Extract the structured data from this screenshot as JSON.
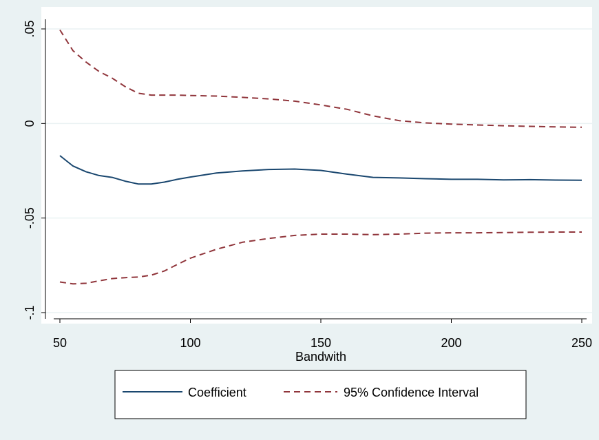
{
  "colors": {
    "background": "#eaf2f3",
    "plot_region": "#ffffff",
    "gridline": "#eaf2f3",
    "coefficient": "#1a476f",
    "confidence_interval": "#90353b"
  },
  "chart_data": {
    "type": "line",
    "xlabel": "Bandwith",
    "ylabel": "",
    "xlim": [
      50,
      250
    ],
    "ylim": [
      -0.1,
      0.05
    ],
    "x_ticks": [
      50,
      100,
      150,
      200,
      250
    ],
    "x_tick_labels": [
      "50",
      "100",
      "150",
      "200",
      "250"
    ],
    "y_ticks": [
      -0.1,
      -0.05,
      0,
      0.05
    ],
    "y_tick_labels": [
      "-.1",
      "-.05",
      "0",
      ".05"
    ],
    "grid": "horizontal",
    "legend_position": "bottom",
    "series": [
      {
        "name": "Coefficient",
        "style": "solid",
        "color": "#1a476f",
        "x": [
          50,
          55,
          60,
          65,
          70,
          75,
          80,
          85,
          90,
          95,
          100,
          110,
          120,
          130,
          140,
          150,
          160,
          170,
          180,
          190,
          200,
          210,
          220,
          230,
          240,
          250
        ],
        "y": [
          -0.017,
          -0.0225,
          -0.0255,
          -0.0275,
          -0.0285,
          -0.0305,
          -0.032,
          -0.032,
          -0.031,
          -0.0295,
          -0.0283,
          -0.0262,
          -0.0251,
          -0.0243,
          -0.0241,
          -0.0248,
          -0.0268,
          -0.0285,
          -0.0288,
          -0.0292,
          -0.0295,
          -0.0295,
          -0.0298,
          -0.0297,
          -0.0299,
          -0.03
        ]
      },
      {
        "name": "95% Confidence Interval",
        "style": "dashed",
        "color": "#90353b",
        "group": "ci",
        "x": [
          50,
          55,
          60,
          65,
          70,
          75,
          80,
          85,
          90,
          95,
          100,
          110,
          120,
          130,
          140,
          150,
          160,
          170,
          180,
          190,
          200,
          210,
          220,
          230,
          240,
          250
        ],
        "y": [
          0.0495,
          0.0385,
          0.0325,
          0.0275,
          0.024,
          0.0195,
          0.016,
          0.015,
          0.015,
          0.015,
          0.0148,
          0.0145,
          0.0138,
          0.013,
          0.0118,
          0.0098,
          0.0075,
          0.004,
          0.0015,
          0.0003,
          -0.0003,
          -0.0008,
          -0.0012,
          -0.0015,
          -0.0018,
          -0.002
        ]
      },
      {
        "name": "",
        "style": "dashed",
        "color": "#90353b",
        "group": "ci",
        "x": [
          50,
          55,
          60,
          65,
          70,
          75,
          80,
          85,
          90,
          95,
          100,
          110,
          120,
          130,
          140,
          150,
          160,
          170,
          180,
          190,
          200,
          210,
          220,
          230,
          240,
          250
        ],
        "y": [
          -0.0838,
          -0.0848,
          -0.0845,
          -0.0832,
          -0.082,
          -0.0815,
          -0.0812,
          -0.0802,
          -0.078,
          -0.0745,
          -0.0712,
          -0.0665,
          -0.0628,
          -0.0608,
          -0.0592,
          -0.0585,
          -0.0585,
          -0.0588,
          -0.0585,
          -0.058,
          -0.0578,
          -0.0578,
          -0.0577,
          -0.0575,
          -0.0574,
          -0.0574
        ]
      }
    ],
    "legend": [
      {
        "label": "Coefficient",
        "style": "solid",
        "color": "#1a476f"
      },
      {
        "label": "95% Confidence Interval",
        "style": "dashed",
        "color": "#90353b"
      }
    ]
  }
}
